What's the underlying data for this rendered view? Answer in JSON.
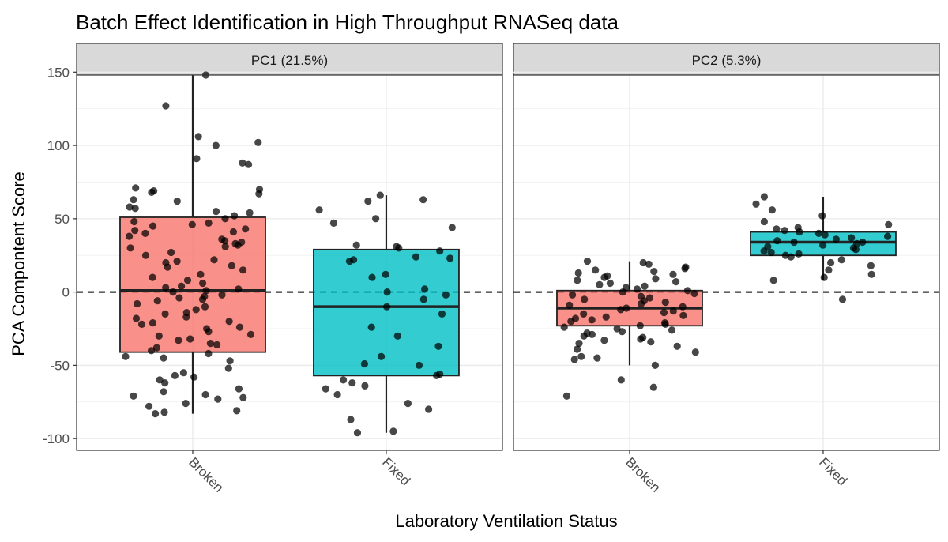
{
  "chart_data": {
    "type": "boxplot",
    "title": "Batch Effect Identification in High Throughput RNASeq data",
    "xlabel": "Laboratory Ventilation Status",
    "ylabel": "PCA Compontent Score",
    "ylim": [
      -108,
      148
    ],
    "yticks": [
      150,
      100,
      50,
      0,
      -50,
      -100
    ],
    "categories": [
      "Broken",
      "Fixed"
    ],
    "reference_line": 0,
    "colors": {
      "Broken": "#F8766D",
      "Fixed": "#00BFC4"
    },
    "panels": [
      {
        "label": "PC1 (21.5%)",
        "boxes": [
          {
            "category": "Broken",
            "lower_whisker": -83,
            "q1": -41,
            "median": 1,
            "q3": 51,
            "upper_whisker": 148,
            "points": [
              148,
              127,
              106,
              102,
              100,
              91,
              88,
              87,
              71,
              70,
              69,
              68,
              67,
              63,
              62,
              58,
              57,
              55,
              54,
              52,
              50,
              48,
              47,
              46,
              45,
              43,
              42,
              41,
              40,
              38,
              36,
              35,
              34,
              33,
              32,
              31,
              30,
              27,
              25,
              22,
              21,
              20,
              18,
              17,
              15,
              12,
              10,
              8,
              6,
              4,
              3,
              2,
              1,
              0,
              -2,
              -3,
              -4,
              -5,
              -6,
              -8,
              -10,
              -12,
              -14,
              -15,
              -17,
              -18,
              -20,
              -21,
              -22,
              -24,
              -25,
              -27,
              -29,
              -30,
              -32,
              -33,
              -35,
              -36,
              -38,
              -40,
              -42,
              -44,
              -45,
              -47,
              -52,
              -55,
              -57,
              -58,
              -60,
              -62,
              -66,
              -68,
              -70,
              -71,
              -72,
              -73,
              -76,
              -78,
              -81,
              -82,
              -83
            ]
          },
          {
            "category": "Fixed",
            "lower_whisker": -96,
            "q1": -57,
            "median": -10,
            "q3": 29,
            "upper_whisker": 66,
            "points": [
              66,
              63,
              62,
              56,
              50,
              47,
              44,
              32,
              31,
              30,
              28,
              24,
              23,
              22,
              21,
              12,
              10,
              2,
              0,
              -2,
              -5,
              -10,
              -15,
              -24,
              -30,
              -37,
              -44,
              -49,
              -50,
              -56,
              -57,
              -60,
              -62,
              -64,
              -66,
              -70,
              -76,
              -80,
              -87,
              -95,
              -96
            ]
          }
        ]
      },
      {
        "label": "PC2 (5.3%)",
        "boxes": [
          {
            "category": "Broken",
            "lower_whisker": -50,
            "q1": -23,
            "median": -11,
            "q3": 1,
            "upper_whisker": 21,
            "points": [
              21,
              20,
              19,
              17,
              16,
              15,
              14,
              13,
              12,
              11,
              10,
              9,
              8,
              7,
              6,
              5,
              4,
              3,
              2,
              1,
              0,
              -1,
              -2,
              -3,
              -4,
              -5,
              -6,
              -7,
              -8,
              -9,
              -10,
              -11,
              -12,
              -13,
              -14,
              -15,
              -16,
              -17,
              -18,
              -19,
              -20,
              -21,
              -22,
              -23,
              -24,
              -25,
              -26,
              -27,
              -28,
              -29,
              -30,
              -31,
              -32,
              -33,
              -34,
              -35,
              -37,
              -39,
              -41,
              -44,
              -45,
              -46,
              -50,
              -60,
              -65,
              -71
            ]
          },
          {
            "category": "Fixed",
            "lower_whisker": 8,
            "q1": 25,
            "median": 34,
            "q3": 41,
            "upper_whisker": 65,
            "points": [
              65,
              60,
              56,
              52,
              48,
              46,
              44,
              43,
              42,
              41,
              40,
              39,
              38,
              37,
              36,
              35,
              34,
              34,
              33,
              32,
              31,
              30,
              29,
              28,
              27,
              26,
              25,
              24,
              22,
              20,
              18,
              15,
              12,
              10,
              8,
              -5
            ]
          }
        ]
      }
    ]
  }
}
